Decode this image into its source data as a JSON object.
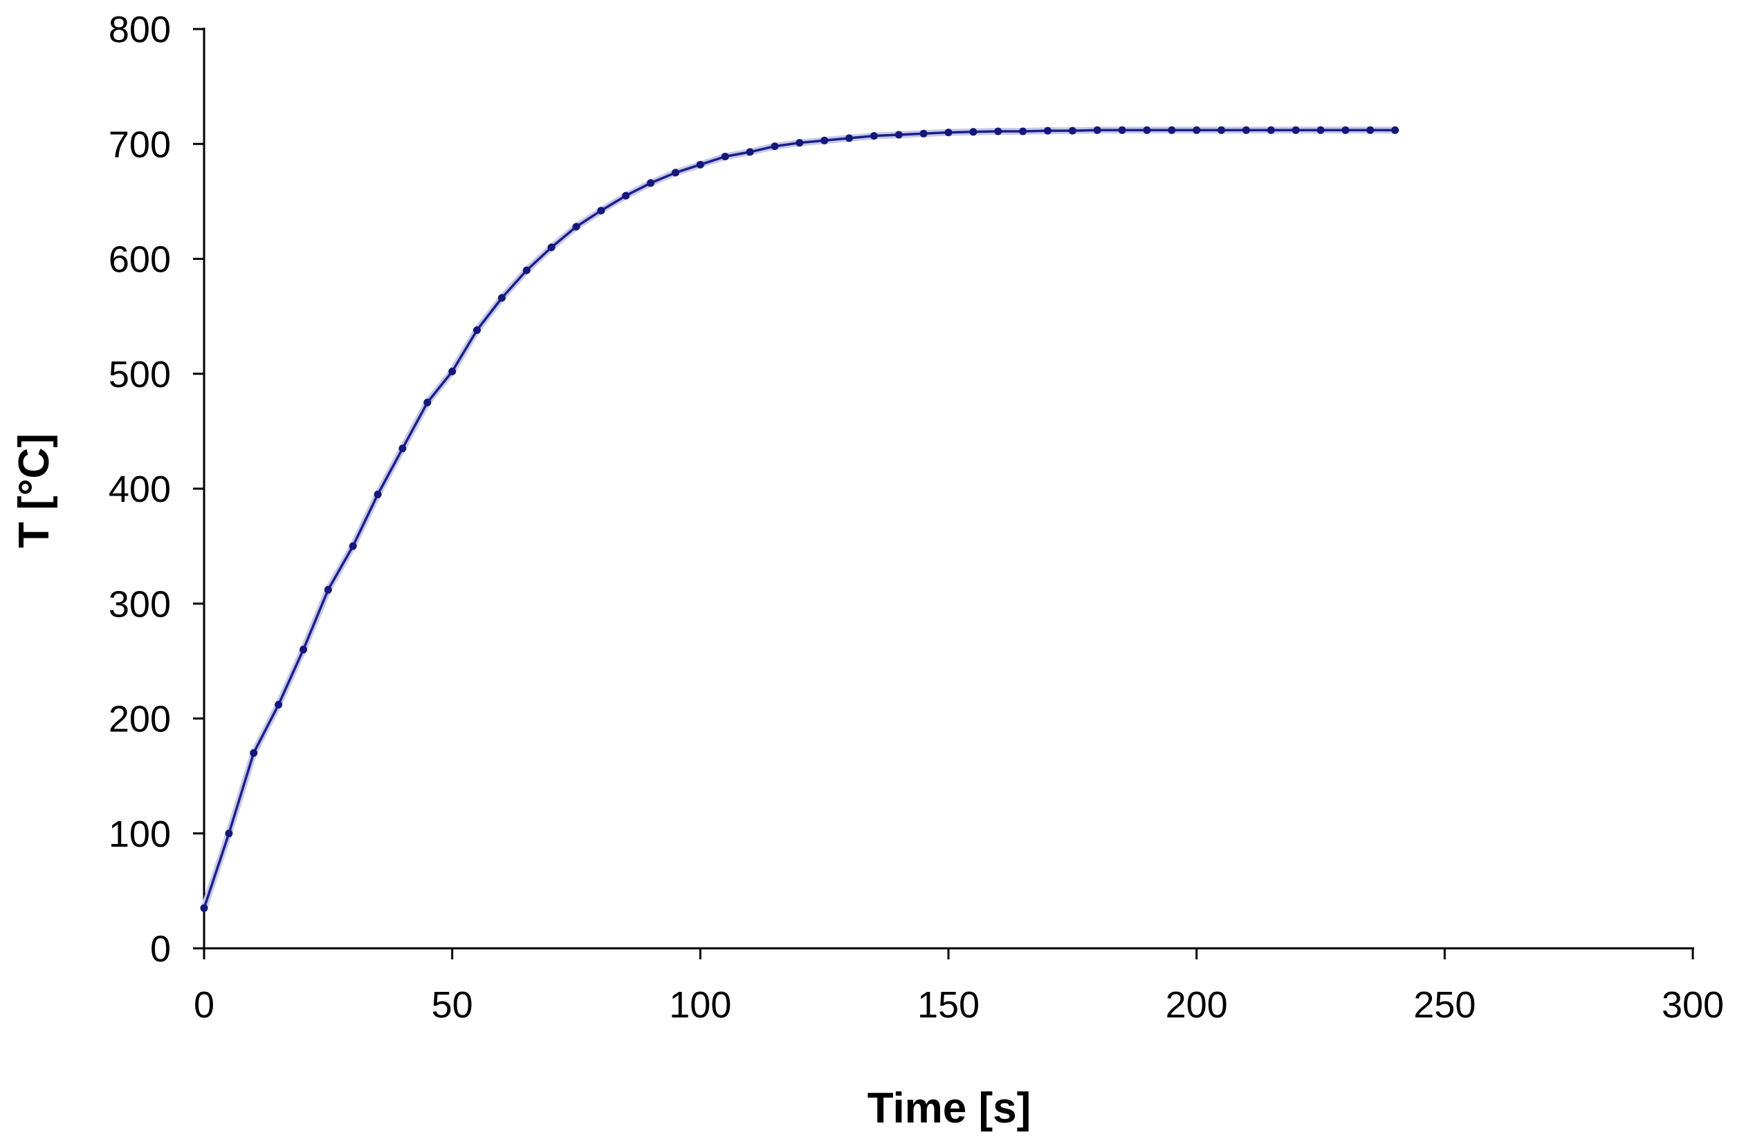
{
  "chart_data": {
    "type": "line",
    "title": "",
    "xlabel": "Time [s]",
    "ylabel": "T [°C]",
    "xlim": [
      0,
      300
    ],
    "ylim": [
      0,
      800
    ],
    "xticks": [
      0,
      50,
      100,
      150,
      200,
      250,
      300
    ],
    "yticks": [
      0,
      100,
      200,
      300,
      400,
      500,
      600,
      700,
      800
    ],
    "grid": false,
    "legend": "none",
    "colors": {
      "line": "#1a1f8c",
      "marker": "#14187a",
      "halo": "#c7c9e6",
      "axis": "#000000"
    },
    "series": [
      {
        "name": "T",
        "x": [
          0,
          5,
          10,
          15,
          20,
          25,
          30,
          35,
          40,
          45,
          50,
          55,
          60,
          65,
          70,
          75,
          80,
          85,
          90,
          95,
          100,
          105,
          110,
          115,
          120,
          125,
          130,
          135,
          140,
          145,
          150,
          155,
          160,
          165,
          170,
          175,
          180,
          185,
          190,
          195,
          200,
          205,
          210,
          215,
          220,
          225,
          230,
          235,
          240
        ],
        "y": [
          35,
          100,
          170,
          212,
          260,
          312,
          350,
          395,
          435,
          475,
          502,
          538,
          566,
          590,
          610,
          628,
          642,
          655,
          666,
          675,
          682,
          689,
          693,
          698,
          701,
          703,
          705,
          707,
          708,
          709,
          710,
          710.5,
          711,
          711,
          711.5,
          711.5,
          712,
          712,
          712,
          712,
          712,
          712,
          712,
          712,
          712,
          712,
          712,
          712,
          712
        ]
      }
    ]
  }
}
